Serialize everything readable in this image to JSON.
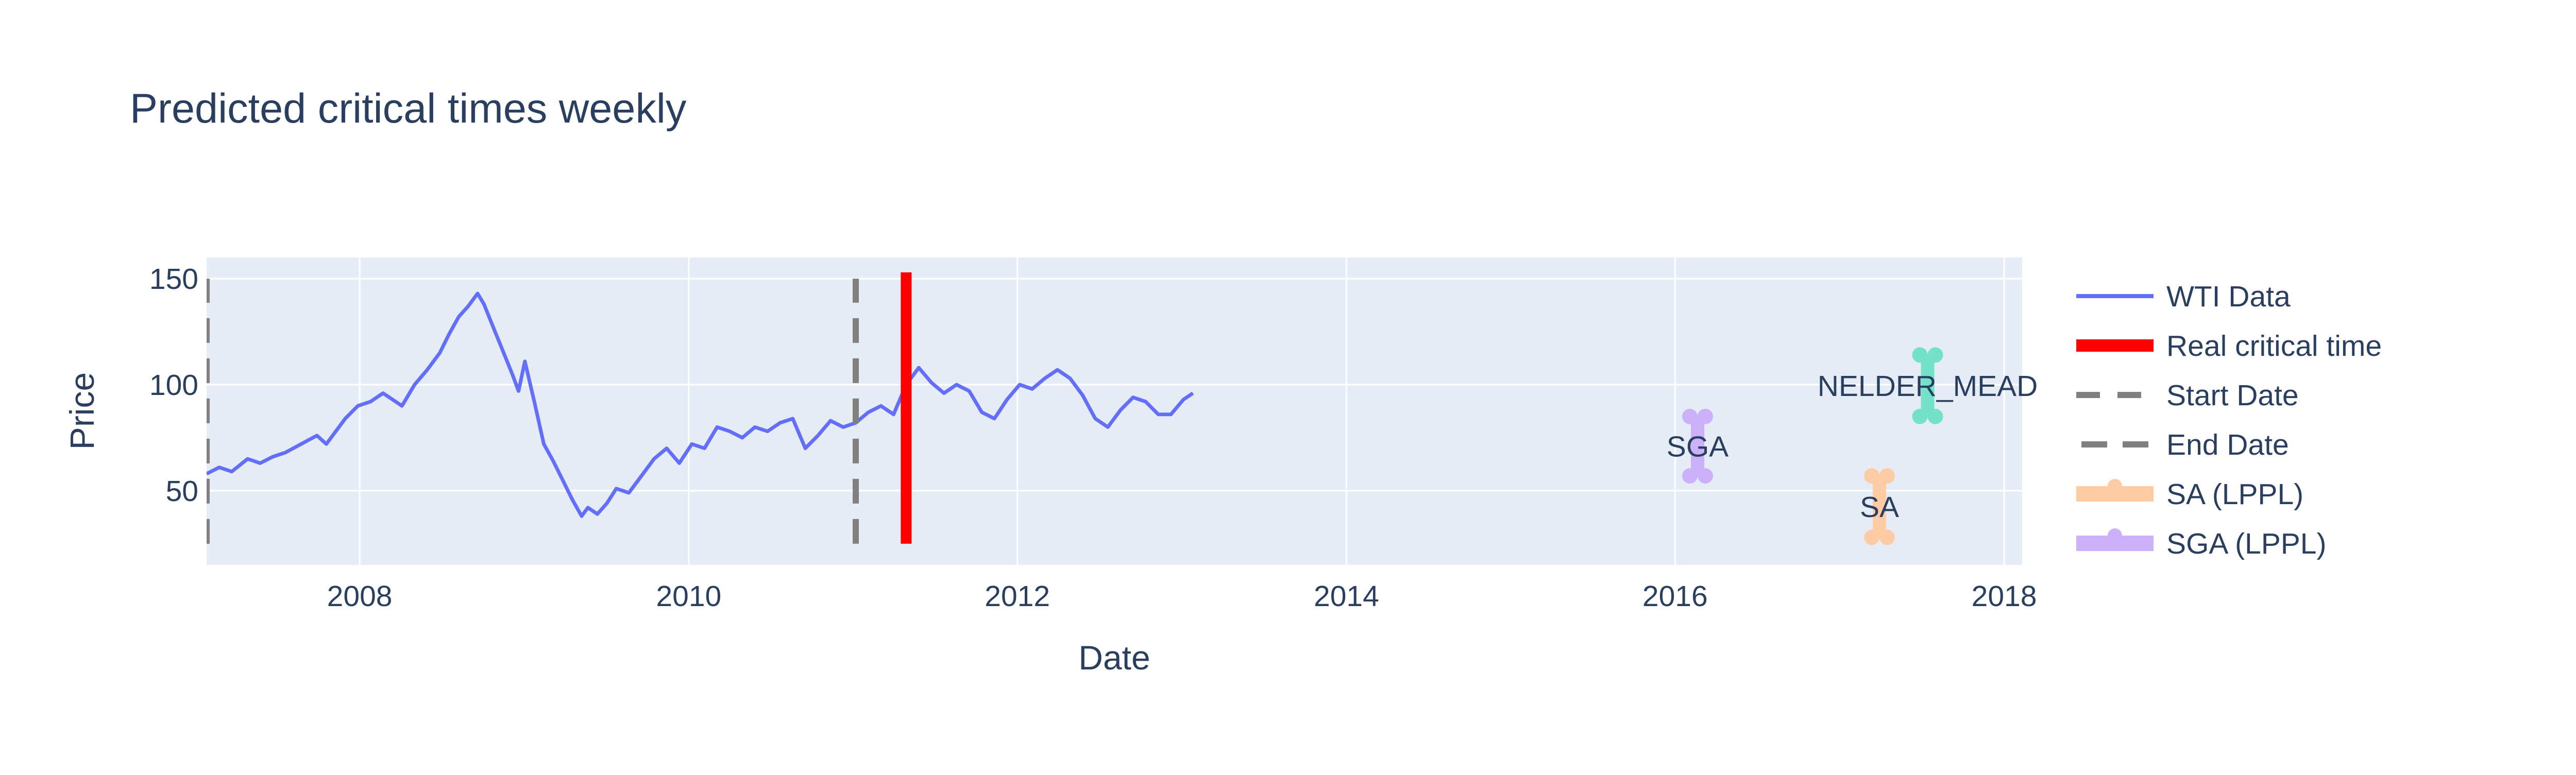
{
  "chart_data": {
    "type": "line",
    "title": "Predicted critical times weekly",
    "xlabel": "Date",
    "ylabel": "Price",
    "xlim": [
      "2007-01-26",
      "2018-02-10"
    ],
    "ylim": [
      15,
      160
    ],
    "x_ticks": [
      "2008",
      "2010",
      "2012",
      "2014",
      "2016",
      "2018"
    ],
    "y_ticks": [
      50,
      100,
      150
    ],
    "grid": true,
    "legend_position": "right",
    "series": [
      {
        "name": "WTI Data",
        "kind": "line",
        "color": "#636efa",
        "points": [
          [
            "2007-01-26",
            58
          ],
          [
            "2007-02-23",
            61
          ],
          [
            "2007-03-23",
            59
          ],
          [
            "2007-04-27",
            65
          ],
          [
            "2007-05-25",
            63
          ],
          [
            "2007-06-22",
            66
          ],
          [
            "2007-07-20",
            68
          ],
          [
            "2007-08-24",
            72
          ],
          [
            "2007-09-28",
            76
          ],
          [
            "2007-10-19",
            72
          ],
          [
            "2007-11-09",
            78
          ],
          [
            "2007-11-30",
            84
          ],
          [
            "2007-12-28",
            90
          ],
          [
            "2008-01-25",
            92
          ],
          [
            "2008-02-22",
            96
          ],
          [
            "2008-03-14",
            93
          ],
          [
            "2008-04-04",
            90
          ],
          [
            "2008-05-02",
            100
          ],
          [
            "2008-05-30",
            107
          ],
          [
            "2008-06-27",
            115
          ],
          [
            "2008-07-18",
            124
          ],
          [
            "2008-08-08",
            132
          ],
          [
            "2008-08-29",
            137
          ],
          [
            "2008-09-19",
            143
          ],
          [
            "2008-10-03",
            138
          ],
          [
            "2008-10-24",
            127
          ],
          [
            "2008-11-14",
            116
          ],
          [
            "2008-12-05",
            105
          ],
          [
            "2008-12-19",
            97
          ],
          [
            "2009-01-02",
            111
          ],
          [
            "2009-01-23",
            92
          ],
          [
            "2009-02-13",
            72
          ],
          [
            "2009-03-06",
            64
          ],
          [
            "2009-03-27",
            55
          ],
          [
            "2009-04-17",
            46
          ],
          [
            "2009-05-08",
            38
          ],
          [
            "2009-05-22",
            42
          ],
          [
            "2009-06-12",
            39
          ],
          [
            "2009-07-03",
            44
          ],
          [
            "2009-07-24",
            51
          ],
          [
            "2009-08-21",
            49
          ],
          [
            "2009-09-18",
            57
          ],
          [
            "2009-10-16",
            65
          ],
          [
            "2009-11-13",
            70
          ],
          [
            "2009-12-11",
            63
          ],
          [
            "2010-01-08",
            72
          ],
          [
            "2010-02-05",
            70
          ],
          [
            "2010-03-05",
            80
          ],
          [
            "2010-04-02",
            78
          ],
          [
            "2010-04-30",
            75
          ],
          [
            "2010-05-28",
            80
          ],
          [
            "2010-06-25",
            78
          ],
          [
            "2010-07-23",
            82
          ],
          [
            "2010-08-20",
            84
          ],
          [
            "2010-09-17",
            70
          ],
          [
            "2010-10-15",
            76
          ],
          [
            "2010-11-12",
            83
          ],
          [
            "2010-12-10",
            80
          ],
          [
            "2011-01-07",
            82
          ],
          [
            "2011-02-04",
            87
          ],
          [
            "2011-03-04",
            90
          ],
          [
            "2011-04-01",
            86
          ],
          [
            "2011-04-29",
            100
          ],
          [
            "2011-05-27",
            108
          ],
          [
            "2011-06-24",
            101
          ],
          [
            "2011-07-22",
            96
          ],
          [
            "2011-08-19",
            100
          ],
          [
            "2011-09-16",
            97
          ],
          [
            "2011-10-14",
            87
          ],
          [
            "2011-11-11",
            84
          ],
          [
            "2011-12-09",
            93
          ],
          [
            "2012-01-06",
            100
          ],
          [
            "2012-02-03",
            98
          ],
          [
            "2012-03-02",
            103
          ],
          [
            "2012-03-30",
            107
          ],
          [
            "2012-04-27",
            103
          ],
          [
            "2012-05-25",
            95
          ],
          [
            "2012-06-22",
            84
          ],
          [
            "2012-07-20",
            80
          ],
          [
            "2012-08-17",
            88
          ],
          [
            "2012-09-14",
            94
          ],
          [
            "2012-10-12",
            92
          ],
          [
            "2012-11-09",
            86
          ],
          [
            "2012-12-07",
            86
          ],
          [
            "2013-01-04",
            93
          ],
          [
            "2013-01-25",
            96
          ]
        ]
      },
      {
        "name": "Real critical time",
        "kind": "vline",
        "color": "#ff0000",
        "x": "2011-04-29",
        "y_range": [
          25,
          153
        ]
      },
      {
        "name": "Start Date",
        "kind": "vline",
        "dash": "long",
        "color": "#808080",
        "x": "2011-01-07",
        "y_range": [
          25,
          150
        ]
      },
      {
        "name": "End Date",
        "kind": "vline",
        "dash": "long",
        "color": "#808080",
        "x": "2007-01-26",
        "y_range": [
          25,
          150
        ]
      },
      {
        "name": "SA (LPPL)",
        "kind": "range",
        "color": "#ffcba4",
        "x": "2017-03-30",
        "y_range": [
          28,
          57
        ],
        "label": "SA"
      },
      {
        "name": "SGA (LPPL)",
        "kind": "range",
        "color": "#cbb0fa",
        "x": "2016-02-20",
        "y_range": [
          57,
          85
        ],
        "label": "SGA"
      },
      {
        "name": "",
        "kind": "range",
        "color": "#73e2c8",
        "x": "2017-07-15",
        "y_range": [
          85,
          114
        ],
        "label": "NELDER_MEAD",
        "show_in_legend": false
      }
    ]
  }
}
